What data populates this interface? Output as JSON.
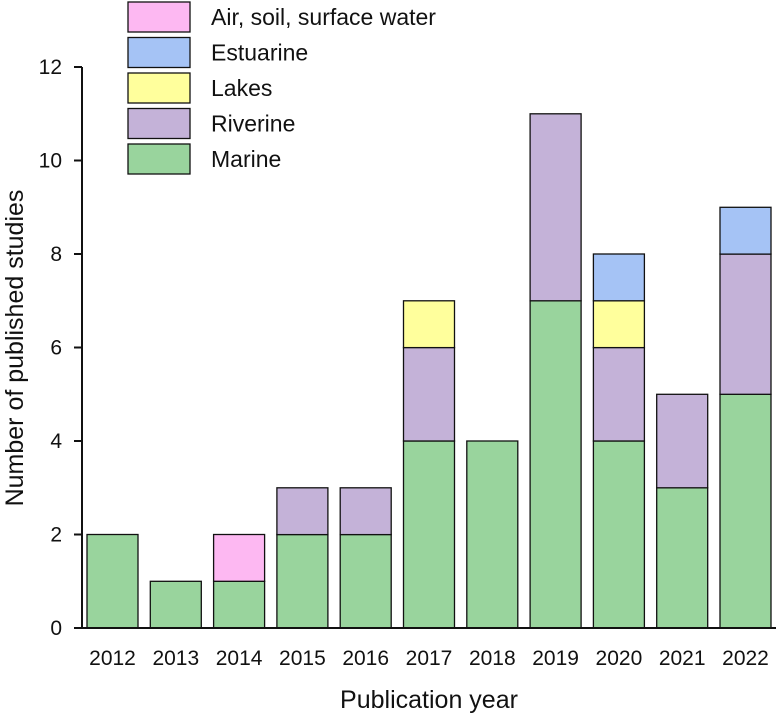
{
  "chart_data": {
    "type": "bar",
    "stacked": true,
    "categories": [
      "2012",
      "2013",
      "2014",
      "2015",
      "2016",
      "2017",
      "2018",
      "2019",
      "2020",
      "2021",
      "2022"
    ],
    "series": [
      {
        "name": "Marine",
        "color": "#99d49d",
        "values": [
          2,
          1,
          1,
          2,
          2,
          4,
          4,
          7,
          4,
          3,
          5
        ]
      },
      {
        "name": "Riverine",
        "color": "#c4b2d8",
        "values": [
          0,
          0,
          0,
          1,
          1,
          2,
          0,
          4,
          2,
          2,
          3
        ]
      },
      {
        "name": "Lakes",
        "color": "#ffff9c",
        "values": [
          0,
          0,
          0,
          0,
          0,
          1,
          0,
          0,
          1,
          0,
          0
        ]
      },
      {
        "name": "Estuarine",
        "color": "#a5c3f5",
        "values": [
          0,
          0,
          0,
          0,
          0,
          0,
          0,
          0,
          1,
          0,
          1
        ]
      },
      {
        "name": "Air, soil, surface water",
        "color": "#fdb8f2",
        "values": [
          0,
          0,
          1,
          0,
          0,
          0,
          0,
          0,
          0,
          0,
          0
        ]
      }
    ],
    "legend_order": [
      "Air, soil, surface water",
      "Estuarine",
      "Lakes",
      "Riverine",
      "Marine"
    ],
    "xlabel": "Publication year",
    "ylabel": "Number of published studies",
    "ylim": [
      0,
      12
    ],
    "yticks": [
      0,
      2,
      4,
      6,
      8,
      10,
      12
    ],
    "grid": false,
    "legend_position": "top-left"
  }
}
